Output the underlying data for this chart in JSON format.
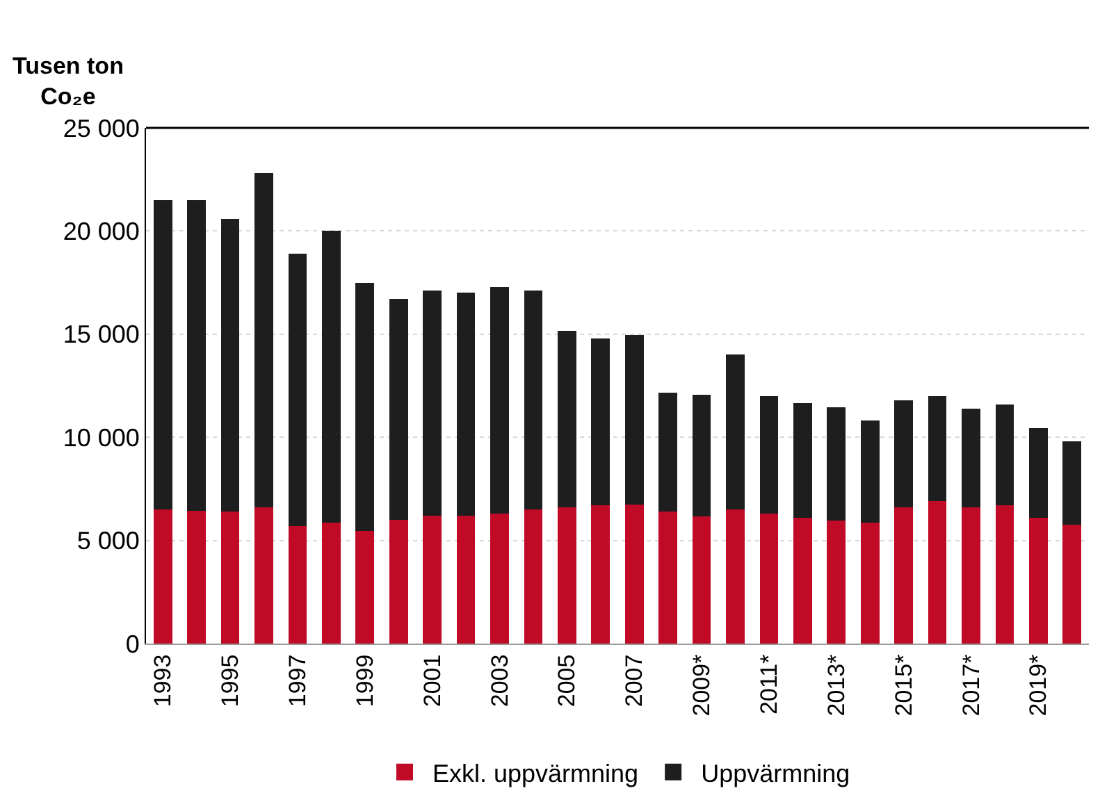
{
  "chart_data": {
    "type": "bar",
    "stacked": true,
    "ylabel": "Tusen ton Co₂e",
    "categories": [
      "1993",
      null,
      "1995",
      null,
      "1997",
      null,
      "1999",
      null,
      "2001",
      null,
      "2003",
      null,
      "2005",
      null,
      "2007",
      null,
      "2009*",
      null,
      "2011*",
      null,
      "2013*",
      null,
      "2015*",
      null,
      "2017*",
      null,
      "2019*",
      null
    ],
    "series": [
      {
        "name": "Exkl. uppvärmning",
        "color": "#c00a26",
        "values": [
          6500,
          6450,
          6400,
          6600,
          5700,
          5850,
          5450,
          6000,
          6200,
          6200,
          6300,
          6500,
          6600,
          6700,
          6750,
          6400,
          6150,
          6500,
          6300,
          6100,
          5950,
          5850,
          6600,
          6900,
          6600,
          6700,
          6100,
          5750
        ]
      },
      {
        "name": "Uppvärmning",
        "color": "#1e1e1e",
        "values": [
          15000,
          15050,
          14200,
          16200,
          13200,
          14150,
          12050,
          10700,
          10900,
          10800,
          11000,
          10600,
          8550,
          8100,
          8200,
          5750,
          5900,
          7500,
          5700,
          5550,
          5500,
          4950,
          5200,
          5100,
          4800,
          4900,
          4350,
          4050
        ]
      }
    ],
    "ylim": [
      0,
      25000
    ],
    "yticks": [
      0,
      {
        "value": 5000,
        "label": "5 000"
      },
      {
        "value": 10000,
        "label": "10 000"
      },
      {
        "value": 15000,
        "label": "15 000"
      },
      {
        "value": 20000,
        "label": "20 000"
      },
      {
        "value": 25000,
        "label": "25 000"
      }
    ],
    "grid": "y",
    "legend": "bottom"
  }
}
